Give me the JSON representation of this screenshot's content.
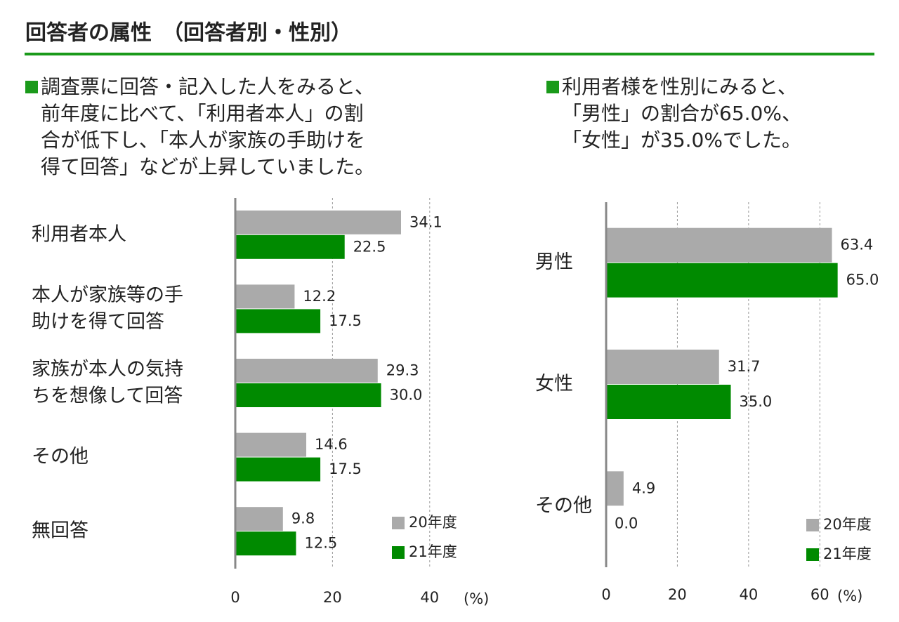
{
  "header": {
    "title": "回答者の属性　（回答者別・性別）"
  },
  "chart_data": [
    {
      "type": "hbar",
      "description": [
        "調査票に回答・記入した人をみると、",
        "前年度に比べて、「利用者本人」の割",
        "合が低下し、「本人が家族の手助けを",
        "得て回答」などが上昇していました。"
      ],
      "categories": [
        [
          "利用者本人"
        ],
        [
          "本人が家族等の手",
          "助けを得て回答"
        ],
        [
          "家族が本人の気持",
          "ちを想像して回答"
        ],
        [
          "その他"
        ],
        [
          "無回答"
        ]
      ],
      "series": [
        {
          "name": "20年度",
          "color": "#aaaaaa",
          "values": [
            34.1,
            12.2,
            29.3,
            14.6,
            9.8
          ],
          "value_labels": [
            "34.1",
            "12.2",
            "29.3",
            "14.6",
            "9.8"
          ]
        },
        {
          "name": "21年度",
          "color": "#008a00",
          "values": [
            22.5,
            17.5,
            30.0,
            17.5,
            12.5
          ],
          "value_labels": [
            "22.5",
            "17.5",
            "30.0",
            "17.5",
            "12.5"
          ]
        }
      ],
      "xlim": [
        0,
        50
      ],
      "xticks": [
        0,
        20,
        40
      ],
      "xlabel": "(%)",
      "grid": true
    },
    {
      "type": "hbar",
      "description": [
        "利用者様を性別にみると、",
        "「男性」の割合が65.0%、",
        "「女性」が35.0%でした。"
      ],
      "categories": [
        [
          "男性"
        ],
        [
          "女性"
        ],
        [
          "その他"
        ]
      ],
      "series": [
        {
          "name": "20年度",
          "color": "#aaaaaa",
          "values": [
            63.4,
            31.7,
            4.9
          ],
          "value_labels": [
            "63.4",
            "31.7",
            "4.9"
          ]
        },
        {
          "name": "21年度",
          "color": "#008a00",
          "values": [
            65.0,
            35.0,
            0.0
          ],
          "value_labels": [
            "65.0",
            "35.0",
            "0.0"
          ]
        }
      ],
      "xlim": [
        0,
        70
      ],
      "xticks": [
        0,
        20,
        40,
        60
      ],
      "xlabel": "(%)",
      "grid": true
    }
  ]
}
